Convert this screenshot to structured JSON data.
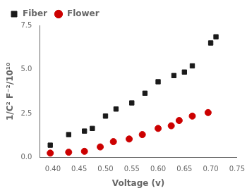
{
  "chart_data": {
    "type": "scatter",
    "xlabel": "Voltage (v)",
    "ylabel": "1/C² F⁻²/10¹⁰",
    "series": [
      {
        "name": "Fiber",
        "color": "#1a1a1a",
        "marker": "square",
        "x": [
          0.395,
          0.43,
          0.46,
          0.475,
          0.5,
          0.52,
          0.55,
          0.575,
          0.6,
          0.63,
          0.65,
          0.665,
          0.7,
          0.71
        ],
        "values": [
          0.7,
          1.3,
          1.5,
          1.65,
          2.35,
          2.75,
          3.1,
          3.65,
          4.3,
          4.65,
          4.85,
          5.2,
          6.5,
          6.85
        ]
      },
      {
        "name": "Flower",
        "color": "#cc0000",
        "marker": "circle",
        "x": [
          0.395,
          0.43,
          0.46,
          0.49,
          0.515,
          0.545,
          0.57,
          0.6,
          0.625,
          0.64,
          0.665,
          0.695
        ],
        "values": [
          0.25,
          0.3,
          0.35,
          0.6,
          0.9,
          1.05,
          1.3,
          1.65,
          1.8,
          2.1,
          2.35,
          2.55
        ]
      }
    ],
    "xlim": [
      0.375,
      0.75
    ],
    "ylim": [
      0.0,
      7.5
    ],
    "xticks": [
      {
        "value": 0.4,
        "label": "0.40"
      },
      {
        "value": 0.45,
        "label": "0.45"
      },
      {
        "value": 0.5,
        "label": "0.50"
      },
      {
        "value": 0.55,
        "label": "0.55"
      },
      {
        "value": 0.6,
        "label": "0.60"
      },
      {
        "value": 0.65,
        "label": "0.65"
      },
      {
        "value": 0.7,
        "label": "0.70"
      },
      {
        "value": 0.75,
        "label": "0.75"
      }
    ],
    "yticks": [
      {
        "value": 0.0,
        "label": "0.0"
      },
      2.5,
      {
        "value": 5.0,
        "label": "5.0"
      },
      7.5
    ],
    "legend": "upper left",
    "grid": false
  }
}
